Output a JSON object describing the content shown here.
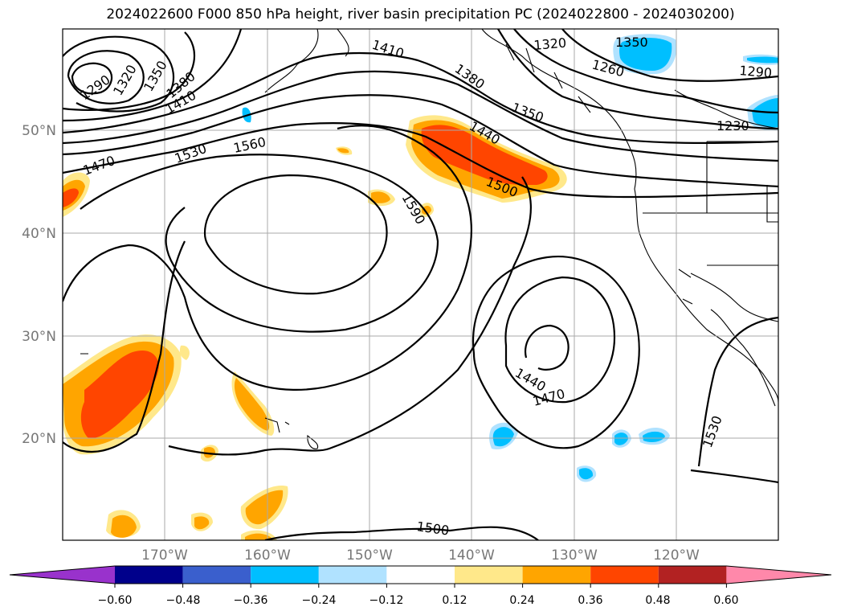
{
  "title": "2024022600 F000 850 hPa height, river basin precipitation PC (2024022800 - 2024030200)",
  "lat_labels": [
    "50°N",
    "40°N",
    "30°N",
    "20°N"
  ],
  "lon_labels": [
    "170°W",
    "160°W",
    "150°W",
    "140°W",
    "130°W",
    "120°W"
  ],
  "contour_labels": [
    "1290",
    "1320",
    "1350",
    "1380",
    "1410",
    "1410",
    "1380",
    "1350",
    "1320",
    "1350",
    "1260",
    "1290",
    "1230",
    "1440",
    "1470",
    "1530",
    "1560",
    "1500",
    "1590",
    "1440",
    "1470",
    "1500",
    "1530"
  ],
  "colorbar": {
    "colors": [
      "#9932cc",
      "#00008b",
      "#3a5fcd",
      "#00bfff",
      "#b0e2ff",
      "#ffffff",
      "#ffe88a",
      "#ffa500",
      "#ff4500",
      "#b22222",
      "#ff88aa"
    ],
    "tick_labels": [
      "−0.60",
      "−0.48",
      "−0.36",
      "−0.24",
      "−0.12",
      "0.12",
      "0.24",
      "0.36",
      "0.48",
      "0.60"
    ]
  }
}
